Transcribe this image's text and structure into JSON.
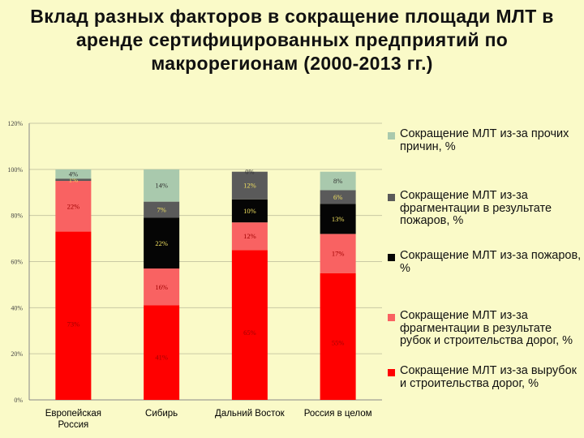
{
  "title": "Вклад разных факторов в сокращение площади МЛТ в аренде сертифицированных предприятий по макрорегионам (2000-2013 гг.)",
  "chart_data": {
    "type": "stacked-bar",
    "title": "Вклад разных факторов в сокращение площади МЛТ в аренде сертифицированных предприятий по макрорегионам (2000-2013 гг.)",
    "categories": [
      "Европейская Россия",
      "Сибирь",
      "Дальний Восток",
      "Россия в целом"
    ],
    "ylim": [
      0,
      120
    ],
    "yticks": [
      "0%",
      "20%",
      "40%",
      "60%",
      "80%",
      "100%",
      "120%"
    ],
    "grid": true,
    "legend_position": "right",
    "series": [
      {
        "name": "Сокращение МЛТ из-за вырубок и строительства дорог, %",
        "color": "#ff0000",
        "label_color": "#a00000",
        "values": [
          73,
          41,
          65,
          55
        ],
        "labels": [
          "73%",
          "41%",
          "65%",
          "55%"
        ]
      },
      {
        "name": "Сокращение МЛТ из-за фрагментации в результате рубок и строительства дорог, %",
        "color": "#f96262",
        "label_color": "#a00000",
        "values": [
          22,
          16,
          12,
          17
        ],
        "labels": [
          "22%",
          "16%",
          "12%",
          "17%"
        ]
      },
      {
        "name": "Сокращение МЛТ из-за пожаров, %",
        "color": "#050505",
        "label_color": "#f0e060",
        "values": [
          0,
          22,
          10,
          13
        ],
        "labels": [
          "",
          "22%",
          "10%",
          "13%"
        ]
      },
      {
        "name": "Сокращение МЛТ из-за фрагментации в результате пожаров, %",
        "color": "#5a5a5a",
        "label_color": "#f0e060",
        "values": [
          1,
          7,
          12,
          6
        ],
        "labels": [
          "1%",
          "7%",
          "12%",
          "6%"
        ]
      },
      {
        "name": "Сокращение МЛТ из-за прочих причин, %",
        "color": "#a9c9ad",
        "label_color": "#303030",
        "values": [
          4,
          14,
          0,
          8
        ],
        "labels": [
          "4%",
          "14%",
          "0%",
          "8%"
        ]
      }
    ]
  }
}
